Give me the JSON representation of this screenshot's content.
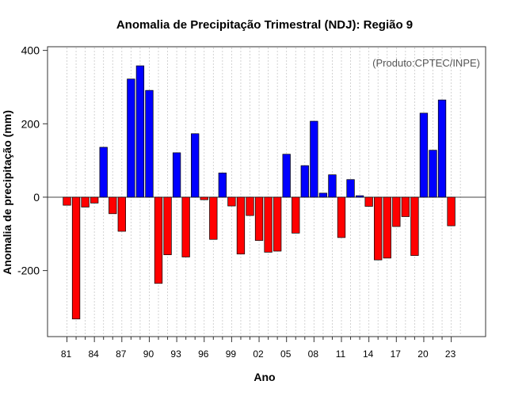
{
  "chart_data": {
    "type": "bar",
    "title": "Anomalia de Precipitação Trimestral (NDJ): Região 9",
    "xlabel": "Ano",
    "ylabel": "Anomalia de precipitação (mm)",
    "credit": "(Produto:CPTEC/INPE)",
    "ylim": [
      -380,
      410
    ],
    "yticks": [
      -200,
      0,
      200,
      400
    ],
    "grid": true,
    "positive_color": "#0000ff",
    "negative_color": "#ff0000",
    "categories": [
      "81",
      "82",
      "83",
      "84",
      "85",
      "86",
      "87",
      "88",
      "89",
      "90",
      "91",
      "92",
      "93",
      "94",
      "95",
      "96",
      "97",
      "98",
      "99",
      "00",
      "01",
      "02",
      "03",
      "04",
      "05",
      "06",
      "07",
      "08",
      "09",
      "10",
      "11",
      "12",
      "13",
      "14",
      "15",
      "16",
      "17",
      "18",
      "19",
      "20",
      "21",
      "22",
      "23"
    ],
    "xtick_labels": [
      "81",
      "84",
      "87",
      "90",
      "93",
      "96",
      "99",
      "02",
      "05",
      "08",
      "11",
      "14",
      "17",
      "20",
      "23"
    ],
    "values": [
      -22,
      -332,
      -27,
      -16,
      136,
      -45,
      -93,
      322,
      358,
      291,
      -235,
      -157,
      121,
      -163,
      173,
      -7,
      -115,
      66,
      -24,
      -155,
      -50,
      -118,
      -150,
      -147,
      117,
      -98,
      86,
      207,
      11,
      61,
      -110,
      48,
      4,
      -25,
      -171,
      -166,
      -80,
      -53,
      -159,
      229,
      128,
      265,
      -78
    ]
  }
}
